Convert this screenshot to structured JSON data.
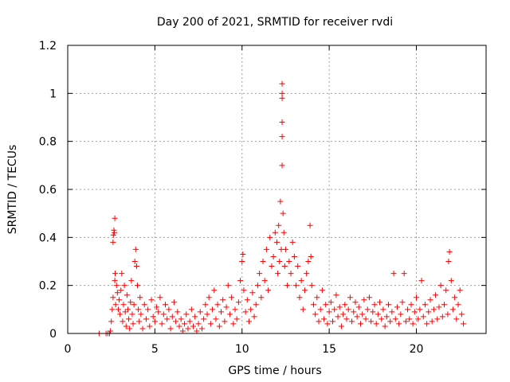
{
  "chart_data": {
    "type": "scatter",
    "title": "Day 200 of 2021, SRMTID for receiver rvdi",
    "xlabel": "GPS time / hours",
    "ylabel": "SRMTID / TECUs",
    "xlim": [
      0,
      24
    ],
    "ylim": [
      0,
      1.2
    ],
    "xticks": [
      0,
      5,
      10,
      15,
      20
    ],
    "xtick_labels": [
      "0",
      "5",
      "10",
      "15",
      "20"
    ],
    "yticks": [
      0,
      0.2,
      0.4,
      0.6,
      0.8,
      1.0,
      1.2
    ],
    "ytick_labels": [
      "0",
      "0.2",
      "0.4",
      "0.6",
      "0.8",
      "1",
      "1.2"
    ],
    "grid": true,
    "marker": "+",
    "color": "#ff0000",
    "series": [
      {
        "name": "SRMTID",
        "points": [
          [
            1.8,
            0.0
          ],
          [
            2.2,
            0.0
          ],
          [
            2.3,
            0.0
          ],
          [
            2.4,
            0.0
          ],
          [
            2.45,
            0.01
          ],
          [
            2.5,
            0.05
          ],
          [
            2.55,
            0.1
          ],
          [
            2.6,
            0.15
          ],
          [
            2.6,
            0.38
          ],
          [
            2.62,
            0.41
          ],
          [
            2.65,
            0.43
          ],
          [
            2.68,
            0.42
          ],
          [
            2.7,
            0.48
          ],
          [
            2.7,
            0.22
          ],
          [
            2.72,
            0.25
          ],
          [
            2.75,
            0.12
          ],
          [
            2.8,
            0.2
          ],
          [
            2.85,
            0.17
          ],
          [
            2.9,
            0.1
          ],
          [
            2.95,
            0.14
          ],
          [
            3.0,
            0.08
          ],
          [
            3.05,
            0.18
          ],
          [
            3.1,
            0.25
          ],
          [
            3.15,
            0.05
          ],
          [
            3.2,
            0.12
          ],
          [
            3.25,
            0.2
          ],
          [
            3.3,
            0.09
          ],
          [
            3.35,
            0.03
          ],
          [
            3.4,
            0.16
          ],
          [
            3.45,
            0.1
          ],
          [
            3.5,
            0.06
          ],
          [
            3.55,
            0.02
          ],
          [
            3.6,
            0.13
          ],
          [
            3.65,
            0.22
          ],
          [
            3.7,
            0.08
          ],
          [
            3.75,
            0.04
          ],
          [
            3.8,
            0.12
          ],
          [
            3.85,
            0.3
          ],
          [
            3.9,
            0.35
          ],
          [
            3.95,
            0.28
          ],
          [
            4.0,
            0.2
          ],
          [
            4.05,
            0.1
          ],
          [
            4.1,
            0.05
          ],
          [
            4.15,
            0.15
          ],
          [
            4.2,
            0.08
          ],
          [
            4.3,
            0.02
          ],
          [
            4.4,
            0.12
          ],
          [
            4.5,
            0.06
          ],
          [
            4.6,
            0.1
          ],
          [
            4.7,
            0.03
          ],
          [
            4.8,
            0.14
          ],
          [
            4.9,
            0.07
          ],
          [
            5.0,
            0.05
          ],
          [
            5.1,
            0.11
          ],
          [
            5.2,
            0.09
          ],
          [
            5.3,
            0.15
          ],
          [
            5.4,
            0.04
          ],
          [
            5.5,
            0.08
          ],
          [
            5.6,
            0.12
          ],
          [
            5.7,
            0.06
          ],
          [
            5.8,
            0.1
          ],
          [
            5.9,
            0.02
          ],
          [
            6.0,
            0.07
          ],
          [
            6.1,
            0.13
          ],
          [
            6.2,
            0.05
          ],
          [
            6.3,
            0.09
          ],
          [
            6.4,
            0.03
          ],
          [
            6.5,
            0.06
          ],
          [
            6.6,
            0.01
          ],
          [
            6.7,
            0.04
          ],
          [
            6.8,
            0.08
          ],
          [
            6.9,
            0.02
          ],
          [
            7.0,
            0.05
          ],
          [
            7.1,
            0.1
          ],
          [
            7.2,
            0.03
          ],
          [
            7.3,
            0.07
          ],
          [
            7.4,
            0.01
          ],
          [
            7.5,
            0.04
          ],
          [
            7.6,
            0.09
          ],
          [
            7.7,
            0.02
          ],
          [
            7.8,
            0.06
          ],
          [
            7.9,
            0.12
          ],
          [
            8.0,
            0.08
          ],
          [
            8.1,
            0.15
          ],
          [
            8.2,
            0.04
          ],
          [
            8.3,
            0.1
          ],
          [
            8.4,
            0.18
          ],
          [
            8.5,
            0.06
          ],
          [
            8.6,
            0.12
          ],
          [
            8.7,
            0.03
          ],
          [
            8.8,
            0.09
          ],
          [
            8.9,
            0.14
          ],
          [
            9.0,
            0.05
          ],
          [
            9.1,
            0.11
          ],
          [
            9.2,
            0.2
          ],
          [
            9.3,
            0.08
          ],
          [
            9.4,
            0.15
          ],
          [
            9.5,
            0.04
          ],
          [
            9.6,
            0.1
          ],
          [
            9.7,
            0.06
          ],
          [
            9.8,
            0.13
          ],
          [
            9.9,
            0.22
          ],
          [
            10.0,
            0.3
          ],
          [
            10.05,
            0.33
          ],
          [
            10.1,
            0.18
          ],
          [
            10.2,
            0.09
          ],
          [
            10.3,
            0.14
          ],
          [
            10.4,
            0.05
          ],
          [
            10.5,
            0.1
          ],
          [
            10.6,
            0.17
          ],
          [
            10.7,
            0.07
          ],
          [
            10.8,
            0.12
          ],
          [
            10.9,
            0.2
          ],
          [
            11.0,
            0.25
          ],
          [
            11.1,
            0.15
          ],
          [
            11.2,
            0.3
          ],
          [
            11.3,
            0.22
          ],
          [
            11.4,
            0.35
          ],
          [
            11.5,
            0.18
          ],
          [
            11.6,
            0.4
          ],
          [
            11.7,
            0.28
          ],
          [
            11.8,
            0.32
          ],
          [
            11.9,
            0.42
          ],
          [
            12.0,
            0.38
          ],
          [
            12.05,
            0.25
          ],
          [
            12.1,
            0.45
          ],
          [
            12.15,
            0.3
          ],
          [
            12.2,
            0.55
          ],
          [
            12.25,
            0.35
          ],
          [
            12.3,
            1.04
          ],
          [
            12.3,
            1.0
          ],
          [
            12.3,
            0.98
          ],
          [
            12.3,
            0.88
          ],
          [
            12.3,
            0.82
          ],
          [
            12.3,
            0.7
          ],
          [
            12.35,
            0.5
          ],
          [
            12.4,
            0.42
          ],
          [
            12.45,
            0.28
          ],
          [
            12.5,
            0.35
          ],
          [
            12.6,
            0.2
          ],
          [
            12.7,
            0.3
          ],
          [
            12.8,
            0.25
          ],
          [
            12.9,
            0.38
          ],
          [
            13.0,
            0.32
          ],
          [
            13.1,
            0.2
          ],
          [
            13.2,
            0.28
          ],
          [
            13.3,
            0.15
          ],
          [
            13.4,
            0.22
          ],
          [
            13.5,
            0.1
          ],
          [
            13.6,
            0.18
          ],
          [
            13.7,
            0.25
          ],
          [
            13.8,
            0.3
          ],
          [
            13.9,
            0.45
          ],
          [
            13.95,
            0.32
          ],
          [
            14.0,
            0.2
          ],
          [
            14.1,
            0.12
          ],
          [
            14.2,
            0.08
          ],
          [
            14.3,
            0.15
          ],
          [
            14.4,
            0.05
          ],
          [
            14.5,
            0.1
          ],
          [
            14.6,
            0.18
          ],
          [
            14.7,
            0.06
          ],
          [
            14.8,
            0.12
          ],
          [
            14.9,
            0.04
          ],
          [
            15.0,
            0.09
          ],
          [
            15.1,
            0.13
          ],
          [
            15.2,
            0.05
          ],
          [
            15.3,
            0.1
          ],
          [
            15.4,
            0.16
          ],
          [
            15.5,
            0.07
          ],
          [
            15.6,
            0.11
          ],
          [
            15.7,
            0.03
          ],
          [
            15.8,
            0.08
          ],
          [
            15.9,
            0.12
          ],
          [
            16.0,
            0.06
          ],
          [
            16.1,
            0.1
          ],
          [
            16.2,
            0.15
          ],
          [
            16.3,
            0.05
          ],
          [
            16.4,
            0.09
          ],
          [
            16.5,
            0.13
          ],
          [
            16.6,
            0.07
          ],
          [
            16.7,
            0.11
          ],
          [
            16.8,
            0.04
          ],
          [
            16.9,
            0.08
          ],
          [
            17.0,
            0.14
          ],
          [
            17.1,
            0.06
          ],
          [
            17.2,
            0.1
          ],
          [
            17.3,
            0.15
          ],
          [
            17.4,
            0.05
          ],
          [
            17.5,
            0.09
          ],
          [
            17.6,
            0.12
          ],
          [
            17.7,
            0.04
          ],
          [
            17.8,
            0.08
          ],
          [
            17.9,
            0.13
          ],
          [
            18.0,
            0.06
          ],
          [
            18.1,
            0.1
          ],
          [
            18.2,
            0.03
          ],
          [
            18.3,
            0.07
          ],
          [
            18.4,
            0.12
          ],
          [
            18.5,
            0.05
          ],
          [
            18.6,
            0.09
          ],
          [
            18.7,
            0.25
          ],
          [
            18.8,
            0.06
          ],
          [
            18.9,
            0.11
          ],
          [
            19.0,
            0.04
          ],
          [
            19.1,
            0.08
          ],
          [
            19.2,
            0.13
          ],
          [
            19.3,
            0.25
          ],
          [
            19.4,
            0.05
          ],
          [
            19.5,
            0.1
          ],
          [
            19.6,
            0.06
          ],
          [
            19.7,
            0.12
          ],
          [
            19.8,
            0.04
          ],
          [
            19.9,
            0.09
          ],
          [
            20.0,
            0.15
          ],
          [
            20.1,
            0.06
          ],
          [
            20.2,
            0.1
          ],
          [
            20.3,
            0.22
          ],
          [
            20.4,
            0.07
          ],
          [
            20.5,
            0.12
          ],
          [
            20.6,
            0.04
          ],
          [
            20.7,
            0.09
          ],
          [
            20.8,
            0.14
          ],
          [
            20.9,
            0.05
          ],
          [
            21.0,
            0.1
          ],
          [
            21.1,
            0.16
          ],
          [
            21.2,
            0.06
          ],
          [
            21.3,
            0.11
          ],
          [
            21.4,
            0.2
          ],
          [
            21.5,
            0.07
          ],
          [
            21.6,
            0.12
          ],
          [
            21.7,
            0.18
          ],
          [
            21.8,
            0.08
          ],
          [
            21.85,
            0.3
          ],
          [
            21.9,
            0.34
          ],
          [
            22.0,
            0.22
          ],
          [
            22.1,
            0.1
          ],
          [
            22.2,
            0.15
          ],
          [
            22.3,
            0.06
          ],
          [
            22.4,
            0.12
          ],
          [
            22.5,
            0.18
          ],
          [
            22.6,
            0.08
          ],
          [
            22.7,
            0.04
          ]
        ]
      }
    ]
  }
}
